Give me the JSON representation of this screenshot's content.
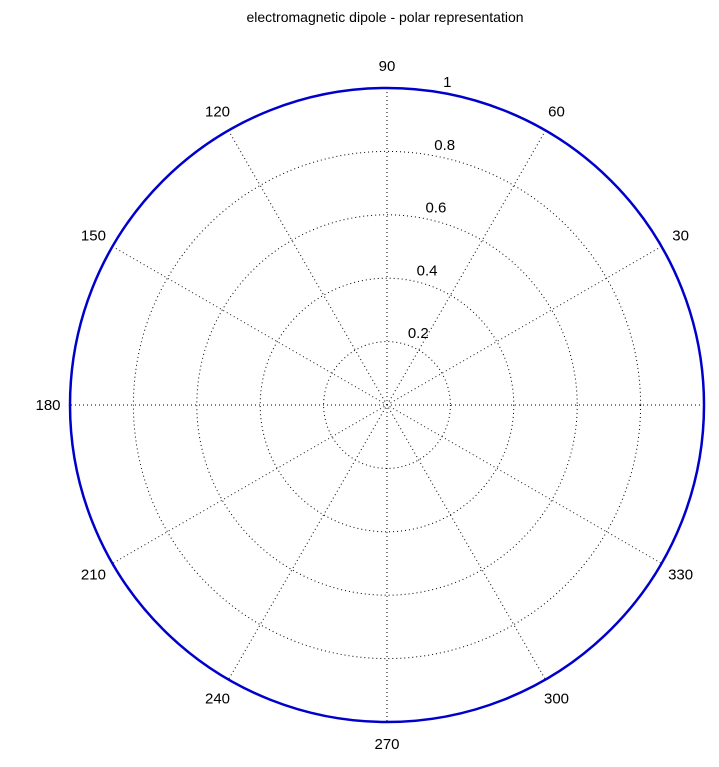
{
  "chart_data": {
    "type": "polar",
    "title": "electromagnetic dipole - polar representation",
    "r_max": 1,
    "radial_ticks": [
      0.2,
      0.4,
      0.6,
      0.8,
      1
    ],
    "radial_tick_labels": [
      "0.2",
      "0.4",
      "0.6",
      "0.8",
      "1"
    ],
    "angle_ticks_deg": [
      0,
      30,
      60,
      90,
      120,
      150,
      180,
      210,
      240,
      270,
      300,
      330
    ],
    "angle_tick_labels": [
      "",
      "30",
      "60",
      "90",
      "120",
      "150",
      "180",
      "210",
      "240",
      "270",
      "300",
      "330"
    ],
    "grid": true,
    "grid_style": "dotted",
    "series": [
      {
        "color": "#0000cc",
        "theta_deg": [
          0,
          45,
          90,
          135,
          180,
          225,
          270,
          315,
          360
        ],
        "r": [
          1,
          1,
          1,
          1,
          1,
          1,
          1,
          1,
          1
        ]
      }
    ]
  }
}
